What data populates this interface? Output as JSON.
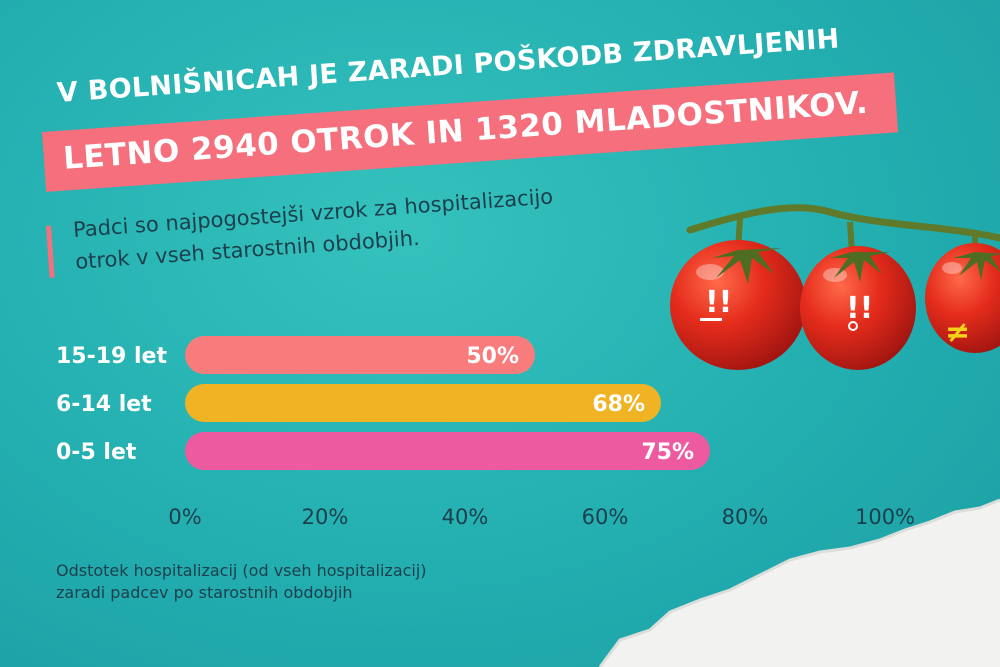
{
  "headline": {
    "line1": "V BOLNIŠNICAH JE ZARADI POŠKODB ZDRAVLJENIH",
    "line2": "LETNO 2940 OTROK IN 1320 MLADOSTNIKOV."
  },
  "subtitle": {
    "line1": "Padci so najpogostejši vzrok za hospitalizacijo",
    "line2": "otrok v vseh starostnih obdobjih."
  },
  "footnote": {
    "line1": "Odstotek hospitalizacij (od vseh hospitalizacij)",
    "line2": "zaradi padcev po starostnih obdobjih"
  },
  "tomato_faces": [
    "!!",
    "!!",
    "≠"
  ],
  "colors": {
    "background": "#23aeb0",
    "banner": "#f56f7d",
    "bar_15_19": "#f87c7c",
    "bar_6_14": "#f0b324",
    "bar_0_5": "#ee5aa0",
    "text_dark": "#1c3f4c"
  },
  "chart_data": {
    "type": "bar",
    "orientation": "horizontal",
    "categories": [
      "15-19 let",
      "6-14 let",
      "0-5 let"
    ],
    "values": [
      50,
      68,
      75
    ],
    "value_labels": [
      "50%",
      "68%",
      "75%"
    ],
    "bar_colors": [
      "#f87c7c",
      "#f0b324",
      "#ee5aa0"
    ],
    "xlim": [
      0,
      100
    ],
    "x_ticks": [
      0,
      20,
      40,
      60,
      80,
      100
    ],
    "x_tick_labels": [
      "0%",
      "20%",
      "40%",
      "60%",
      "80%",
      "100%"
    ],
    "grid": false,
    "legend": "none"
  }
}
